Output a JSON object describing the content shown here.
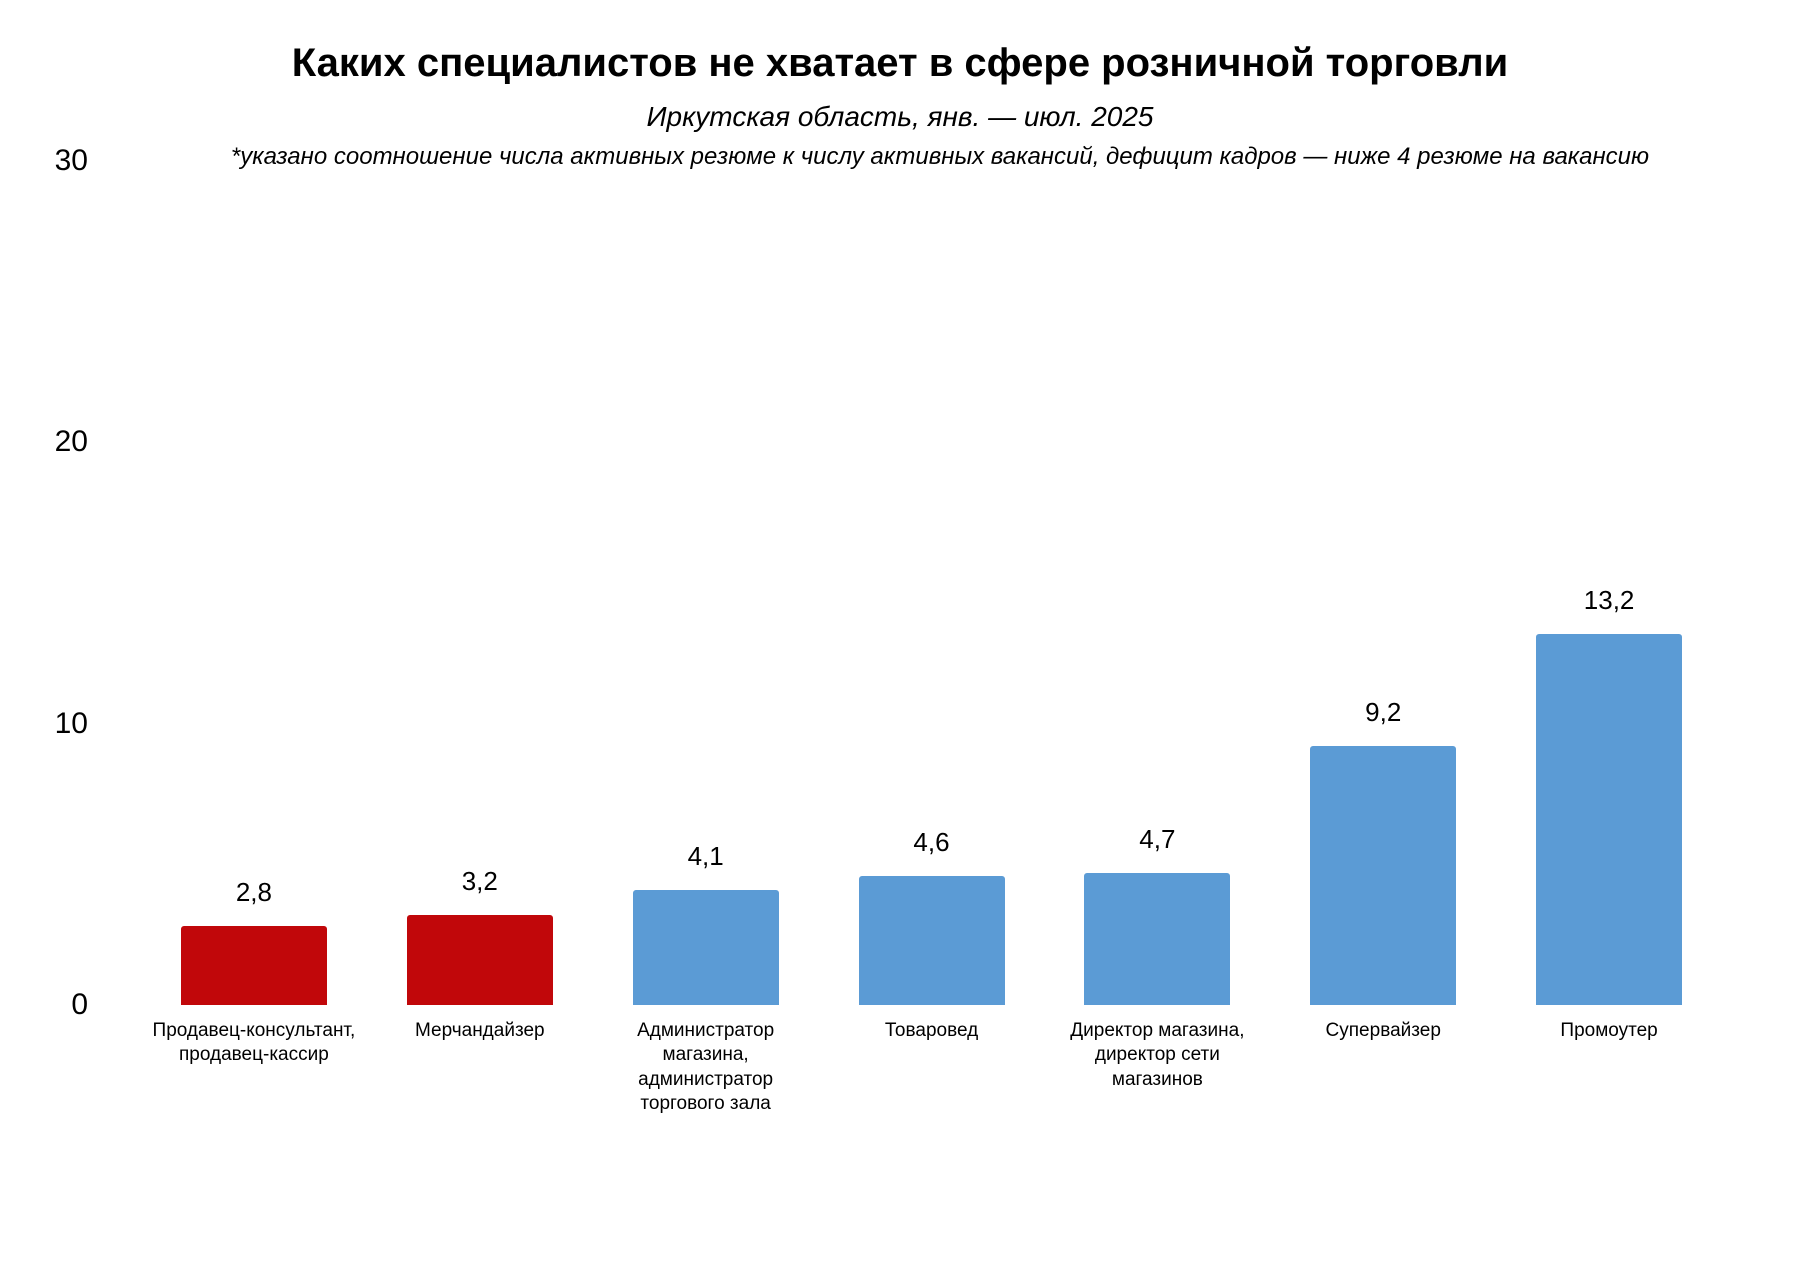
{
  "header": {
    "title": "Каких специалистов не хватает в сфере розничной торговли",
    "subtitle": "Иркутская область, янв. — июл. 2025",
    "footnote": "*указано соотношение числа активных резюме к числу активных вакансий, дефицит кадров — ниже 4 резюме на вакансию"
  },
  "colors": {
    "deficit_red": "#C1070A",
    "normal_blue": "#5B9BD5",
    "text": "#000000",
    "background": "#FFFFFF"
  },
  "chart_data": {
    "type": "bar",
    "title": "Каких специалистов не хватает в сфере розничной торговли",
    "subtitle": "Иркутская область, янв. — июл. 2025",
    "footnote": "*указано соотношение числа активных резюме к числу активных вакансий, дефицит кадров — ниже 4 резюме на вакансию",
    "categories": [
      "Продавец-консультант, продавец-кассир",
      "Мерчандайзер",
      "Администратор магазина, администратор торгового зала",
      "Товаровед",
      "Директор магазина, директор сети магазинов",
      "Супервайзер",
      "Промоутер"
    ],
    "category_label_lines": [
      [
        "Продавец-консультант,",
        "продавец-кассир"
      ],
      [
        "Мерчандайзер"
      ],
      [
        "Администратор",
        "магазина,",
        "администратор",
        "торгового зала"
      ],
      [
        "Товаровед"
      ],
      [
        "Директор магазина,",
        "директор сети",
        "магазинов"
      ],
      [
        "Супервайзер"
      ],
      [
        "Промоутер"
      ]
    ],
    "values": [
      2.8,
      3.2,
      4.1,
      4.6,
      4.7,
      9.2,
      13.2
    ],
    "value_labels": [
      "2,8",
      "3,2",
      "4,1",
      "4,6",
      "4,7",
      "9,2",
      "13,2"
    ],
    "bar_colors": [
      "#C1070A",
      "#C1070A",
      "#5B9BD5",
      "#5B9BD5",
      "#5B9BD5",
      "#5B9BD5",
      "#5B9BD5"
    ],
    "xlabel": "",
    "ylabel": "",
    "ylim": [
      0,
      30
    ],
    "yticks": [
      0,
      10,
      20,
      30
    ],
    "ytick_labels": [
      "0",
      "10",
      "20",
      "30"
    ],
    "grid": false,
    "legend": "none",
    "value_label_position": "above-bar"
  }
}
